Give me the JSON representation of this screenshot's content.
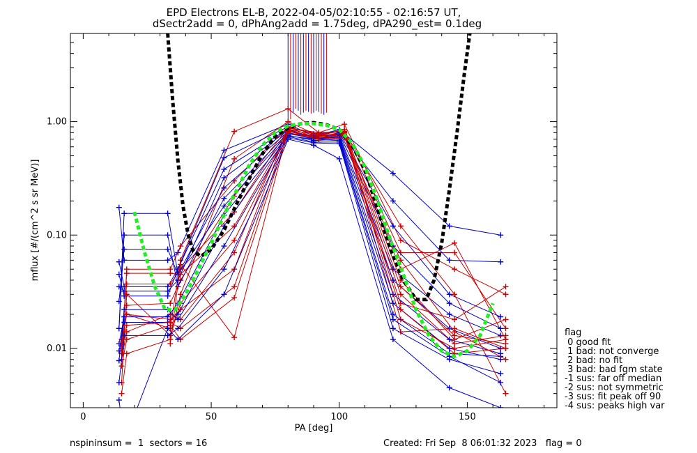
{
  "chart_data": {
    "type": "line",
    "title": "EPD Electrons EL-B, 2022-04-05/02:10:55 - 02:16:57 UT,",
    "subtitle": "dSectr2add = 0, dPhAng2add = 1.75deg, dPA290_est=   0.1deg",
    "xlabel": "PA [deg]",
    "ylabel": "mflux [#/(cm^2 s sr MeV)]",
    "xlim": [
      -5,
      185
    ],
    "ylim": [
      0.003,
      6.0
    ],
    "y_scale": "log",
    "x_ticks": [
      0,
      50,
      100,
      150
    ],
    "x_tick_labels": [
      "0",
      "50",
      "100",
      "150"
    ],
    "y_ticks": [
      0.01,
      0.1,
      1.0
    ],
    "y_tick_labels": [
      "0.01",
      "0.10",
      "1.00"
    ],
    "colors": {
      "red": "#cc0000",
      "blue": "#0000cc",
      "green_fit": "#22ee22",
      "black_fit": "#000000"
    },
    "red_x": [
      15,
      17,
      34,
      38,
      59,
      80,
      92,
      102,
      124,
      145,
      165
    ],
    "blue_x": [
      14,
      16,
      33,
      37,
      55,
      80,
      90,
      100,
      121,
      143,
      163
    ],
    "red_series": [
      [
        null,
        0.02,
        0.015,
        0.06,
        0.82,
        1.3,
        0.8,
        0.95,
        0.09,
        0.05,
        0.03
      ],
      [
        0.004,
        0.009,
        0.012,
        0.03,
        0.47,
        1.0,
        0.75,
        0.85,
        0.07,
        0.07,
        0.015
      ],
      [
        0.008,
        0.05,
        0.05,
        0.08,
        0.3,
        0.9,
        0.7,
        0.8,
        0.05,
        0.085,
        0.012
      ],
      [
        0.009,
        0.024,
        0.025,
        0.04,
        0.22,
        0.88,
        0.78,
        0.82,
        0.12,
        0.03,
        0.004
      ],
      [
        0.012,
        0.037,
        0.037,
        0.05,
        0.16,
        0.85,
        0.7,
        0.75,
        0.025,
        0.018,
        0.035
      ],
      [
        0.01,
        0.046,
        0.046,
        0.045,
        0.12,
        0.8,
        0.72,
        0.78,
        0.03,
        0.011,
        0.013
      ],
      [
        0.005,
        0.03,
        0.013,
        0.025,
        0.09,
        0.82,
        0.74,
        0.8,
        0.014,
        0.015,
        0.01
      ],
      [
        0.008,
        0.014,
        0.02,
        0.018,
        0.07,
        0.9,
        0.76,
        0.85,
        0.04,
        0.012,
        0.018
      ],
      [
        0.011,
        0.02,
        0.018,
        0.022,
        0.05,
        0.88,
        0.8,
        0.82,
        0.018,
        0.01,
        0.012
      ],
      [
        0.009,
        0.016,
        0.017,
        0.015,
        0.035,
        0.84,
        0.72,
        0.76,
        0.022,
        0.009,
        0.01
      ],
      [
        null,
        null,
        0.011,
        0.055,
        0.0125,
        0.86,
        0.75,
        0.8,
        0.035,
        0.013,
        0.011
      ],
      [
        0.007,
        0.012,
        0.016,
        0.012,
        0.028,
        0.8,
        0.7,
        0.72,
        0.06,
        0.014,
        0.008
      ]
    ],
    "blue_series": [
      [
        0.175,
        0.06,
        0.06,
        0.07,
        0.56,
        0.95,
        0.75,
        0.85,
        0.35,
        0.12,
        0.1
      ],
      [
        0.058,
        0.035,
        0.035,
        0.05,
        0.48,
        0.9,
        0.78,
        0.82,
        0.2,
        0.06,
        0.058
      ],
      [
        0.045,
        0.029,
        0.029,
        0.05,
        0.38,
        0.86,
        0.72,
        0.8,
        0.12,
        0.03,
        0.019
      ],
      [
        0.035,
        0.032,
        0.032,
        0.04,
        0.32,
        0.84,
        0.7,
        0.78,
        0.08,
        0.025,
        0.015
      ],
      [
        0.026,
        0.075,
        0.075,
        0.045,
        0.26,
        0.82,
        0.74,
        0.76,
        0.05,
        0.02,
        0.013
      ],
      [
        0.015,
        0.1,
        0.1,
        0.035,
        0.21,
        0.8,
        0.7,
        0.74,
        0.04,
        0.015,
        0.01
      ],
      [
        0.015,
        0.155,
        0.155,
        0.045,
        0.18,
        0.78,
        0.72,
        0.72,
        0.03,
        0.012,
        0.009
      ],
      [
        0.011,
        0.019,
        0.019,
        0.025,
        0.15,
        0.76,
        0.68,
        0.7,
        0.025,
        0.01,
        0.008
      ],
      [
        0.0095,
        0.017,
        0.017,
        0.02,
        0.12,
        0.75,
        0.7,
        0.68,
        0.02,
        0.009,
        0.0085
      ],
      [
        0.0078,
        0.022,
        0.022,
        0.018,
        0.08,
        0.74,
        0.66,
        0.66,
        0.018,
        0.0085,
        0.005
      ],
      [
        0.005,
        0.013,
        0.013,
        0.015,
        0.05,
        0.72,
        0.65,
        0.64,
        0.015,
        0.008,
        0.006
      ],
      [
        0.0035,
        0.0015,
        0.015,
        0.012,
        0.03,
        0.7,
        0.62,
        0.47,
        0.012,
        0.0045,
        0.003
      ]
    ],
    "green_fit": {
      "x": [
        20,
        24,
        28,
        32,
        36,
        40,
        45,
        50,
        55,
        60,
        65,
        70,
        75,
        80,
        85,
        90,
        95,
        100,
        105,
        110,
        115,
        120,
        125,
        130,
        135,
        140,
        145,
        150,
        155,
        160
      ],
      "y": [
        0.16,
        0.07,
        0.035,
        0.022,
        0.022,
        0.03,
        0.05,
        0.085,
        0.15,
        0.25,
        0.42,
        0.62,
        0.8,
        0.92,
        0.96,
        0.96,
        0.93,
        0.85,
        0.65,
        0.4,
        0.2,
        0.09,
        0.045,
        0.022,
        0.013,
        0.0095,
        0.0085,
        0.0095,
        0.013,
        0.025
      ]
    },
    "black_fit": {
      "x": [
        33,
        35,
        37,
        39,
        41,
        43,
        46,
        50,
        55,
        60,
        65,
        70,
        75,
        80,
        85,
        90,
        95,
        100,
        105,
        110,
        115,
        120,
        125,
        130,
        134,
        137,
        140,
        143,
        146,
        149,
        151
      ],
      "y": [
        6.0,
        1.5,
        0.45,
        0.18,
        0.1,
        0.072,
        0.065,
        0.075,
        0.11,
        0.19,
        0.32,
        0.52,
        0.74,
        0.88,
        0.96,
        0.98,
        0.94,
        0.85,
        0.62,
        0.38,
        0.17,
        0.075,
        0.04,
        0.027,
        0.027,
        0.04,
        0.085,
        0.25,
        0.8,
        2.8,
        6.0
      ]
    },
    "spikes": {
      "x": [
        80,
        81,
        82,
        83,
        84,
        85,
        86,
        87,
        88,
        89,
        90,
        91,
        92,
        93,
        94,
        95
      ],
      "y_from": [
        0.95,
        1.05,
        1.2,
        1.3,
        1.25,
        1.15,
        1.2,
        1.25,
        1.22,
        1.18,
        1.2,
        1.25,
        1.22,
        1.18,
        1.15,
        1.2
      ]
    }
  },
  "legend": {
    "header": "flag",
    "items": [
      " 0 good fit",
      " 1 bad: not converge",
      " 2 bad: no fit",
      " 3 bad: bad fgm state",
      "-1 sus: far off median",
      "-2 sus: not symmetric",
      "-3 sus: fit peak off 90",
      "-4 sus: peaks high var"
    ]
  },
  "footer": {
    "left": "nspininsum =  1  sectors = 16",
    "right": "Created: Fri Sep  8 06:01:32 2023   flag = 0"
  }
}
